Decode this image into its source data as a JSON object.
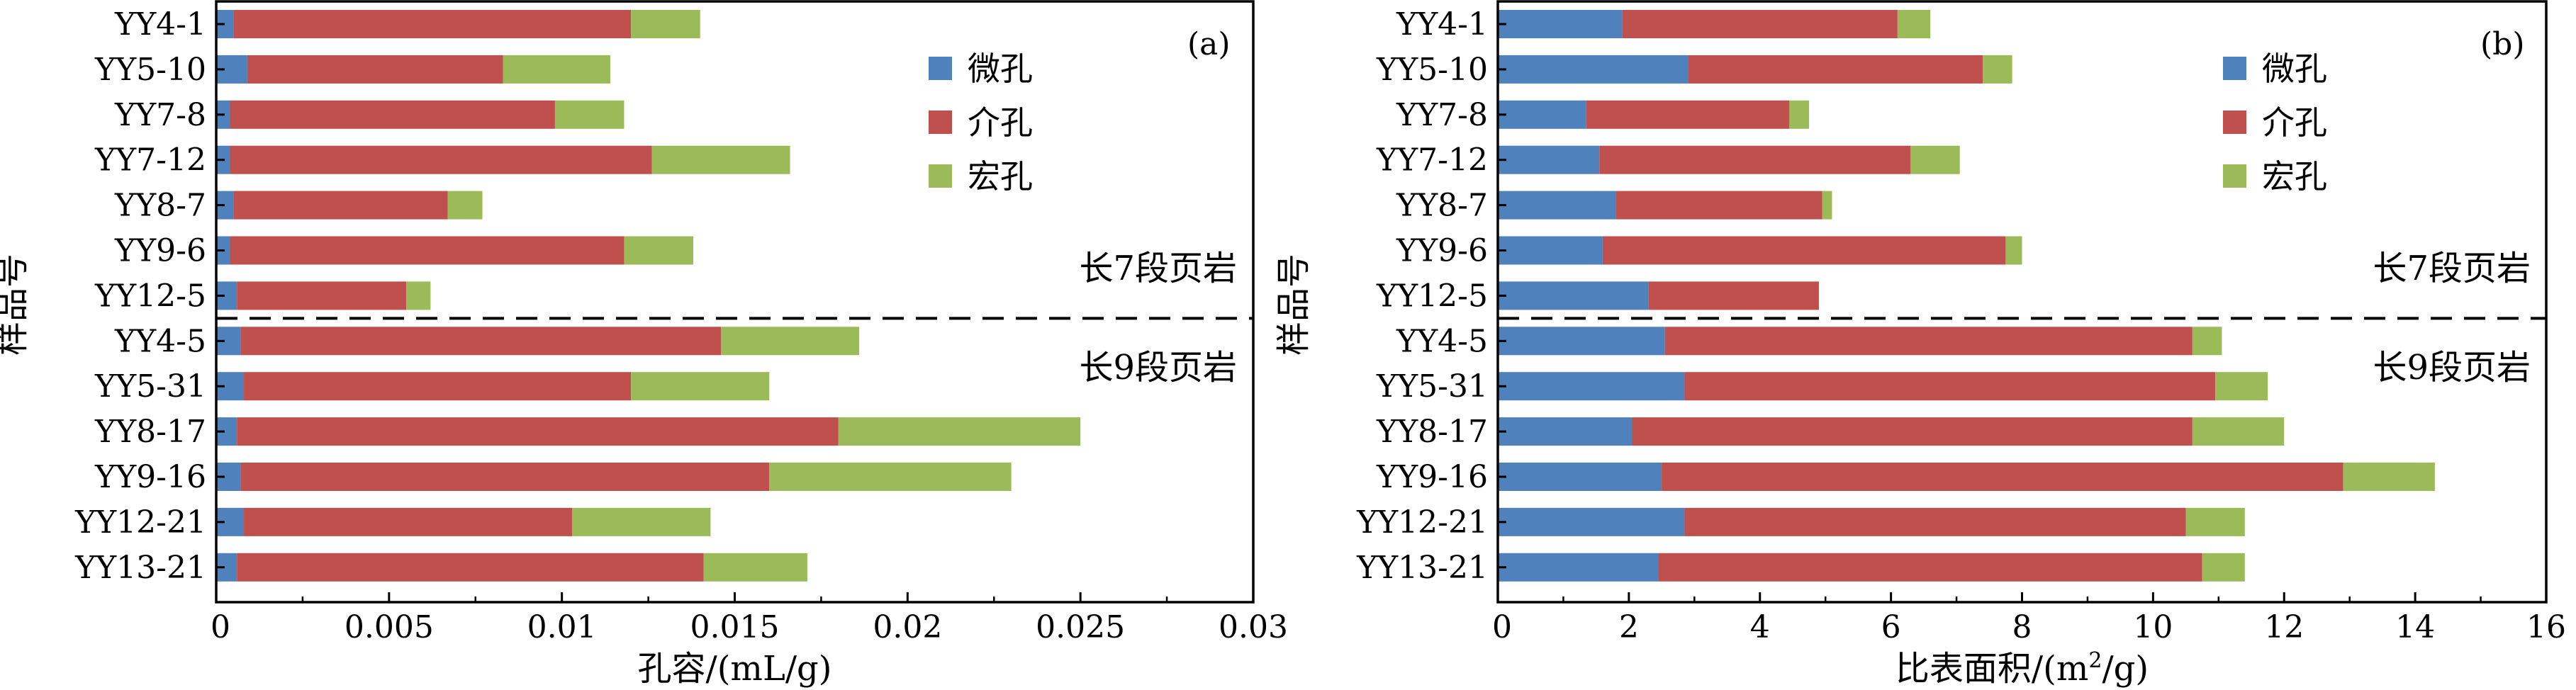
{
  "chart_data": [
    {
      "type": "bar",
      "orientation": "horizontal",
      "stacked": true,
      "panel_label": "(a)",
      "xlabel": "孔容/(mL/g)",
      "ylabel": "样品号",
      "xlim": [
        0,
        0.03
      ],
      "xticks": [
        0,
        0.005,
        0.01,
        0.015,
        0.02,
        0.025,
        0.03
      ],
      "xtick_labels": [
        "0",
        "0.005",
        "0.01",
        "0.015",
        "0.02",
        "0.025",
        "0.03"
      ],
      "categories": [
        "YY4-1",
        "YY5-10",
        "YY7-8",
        "YY7-12",
        "YY8-7",
        "YY9-6",
        "YY12-5",
        "YY4-5",
        "YY5-31",
        "YY8-17",
        "YY9-16",
        "YY12-21",
        "YY13-21"
      ],
      "series": [
        {
          "name": "微孔",
          "color": "#4f81bd",
          "values": [
            0.0005,
            0.0009,
            0.0004,
            0.0004,
            0.0005,
            0.0004,
            0.0006,
            0.0007,
            0.0008,
            0.0006,
            0.0007,
            0.0008,
            0.0006
          ]
        },
        {
          "name": "介孔",
          "color": "#c0504d",
          "values": [
            0.0115,
            0.0074,
            0.0094,
            0.0122,
            0.0062,
            0.0114,
            0.0049,
            0.0139,
            0.0112,
            0.0174,
            0.0153,
            0.0095,
            0.0135
          ]
        },
        {
          "name": "宏孔",
          "color": "#9bbb59",
          "values": [
            0.002,
            0.0031,
            0.002,
            0.004,
            0.001,
            0.002,
            0.0007,
            0.004,
            0.004,
            0.007,
            0.007,
            0.004,
            0.003
          ]
        }
      ],
      "legend_position": "top-right",
      "group_labels": [
        "长7段页岩",
        "长9段页岩"
      ],
      "group_sizes": [
        7,
        6
      ],
      "grid": false
    },
    {
      "type": "bar",
      "orientation": "horizontal",
      "stacked": true,
      "panel_label": "(b)",
      "xlabel_main": "比表面积/(m",
      "xlabel_sup": "2",
      "xlabel_tail": "/g)",
      "ylabel": "样品号",
      "xlim": [
        0,
        16
      ],
      "xticks": [
        0,
        2,
        4,
        6,
        8,
        10,
        12,
        14,
        16
      ],
      "xtick_labels": [
        "0",
        "2",
        "4",
        "6",
        "8",
        "10",
        "12",
        "14",
        "16"
      ],
      "categories": [
        "YY4-1",
        "YY5-10",
        "YY7-8",
        "YY7-12",
        "YY8-7",
        "YY9-6",
        "YY12-5",
        "YY4-5",
        "YY5-31",
        "YY8-17",
        "YY9-16",
        "YY12-21",
        "YY13-21"
      ],
      "series": [
        {
          "name": "微孔",
          "color": "#4f81bd",
          "values": [
            1.9,
            2.9,
            1.35,
            1.55,
            1.8,
            1.6,
            2.3,
            2.55,
            2.85,
            2.05,
            2.5,
            2.85,
            2.45
          ]
        },
        {
          "name": "介孔",
          "color": "#c0504d",
          "values": [
            4.2,
            4.5,
            3.1,
            4.75,
            3.15,
            6.15,
            2.6,
            8.05,
            8.1,
            8.55,
            10.4,
            7.65,
            8.3
          ]
        },
        {
          "name": "宏孔",
          "color": "#9bbb59",
          "values": [
            0.5,
            0.45,
            0.3,
            0.75,
            0.15,
            0.25,
            0.0,
            0.45,
            0.8,
            1.4,
            1.4,
            0.9,
            0.65
          ]
        }
      ],
      "legend_position": "top-right",
      "group_labels": [
        "长7段页岩",
        "长9段页岩"
      ],
      "group_sizes": [
        7,
        6
      ],
      "grid": false
    }
  ]
}
